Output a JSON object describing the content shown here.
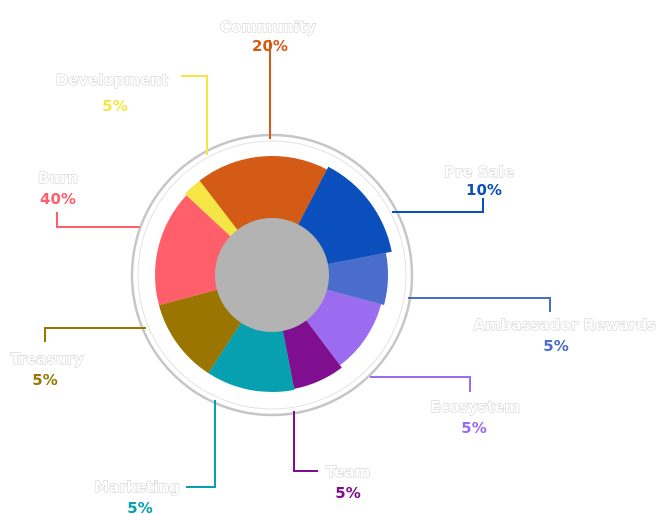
{
  "chart_data": {
    "type": "pie",
    "title": "",
    "slices": [
      {
        "label": "Community",
        "value_label": "20%",
        "color": "#d35b16"
      },
      {
        "label": "Pre Sale",
        "value_label": "10%",
        "color": "#0b4fbd"
      },
      {
        "label": "Ambassador Rewards",
        "value_label": "5%",
        "color": "#4a6ccb"
      },
      {
        "label": "Ecosystem",
        "value_label": "5%",
        "color": "#9b6cf0"
      },
      {
        "label": "Team",
        "value_label": "5%",
        "color": "#7f0f8f"
      },
      {
        "label": "Marketing",
        "value_label": "5%",
        "color": "#07a0b0"
      },
      {
        "label": "Treasury",
        "value_label": "5%",
        "color": "#9a7500"
      },
      {
        "label": "Burn",
        "value_label": "40%",
        "color": "#ff5f6a"
      },
      {
        "label": "Development",
        "value_label": "5%",
        "color": "#f5e645"
      }
    ],
    "center_color": "#b3b3b3",
    "ring_color": "#c6c6c6"
  }
}
